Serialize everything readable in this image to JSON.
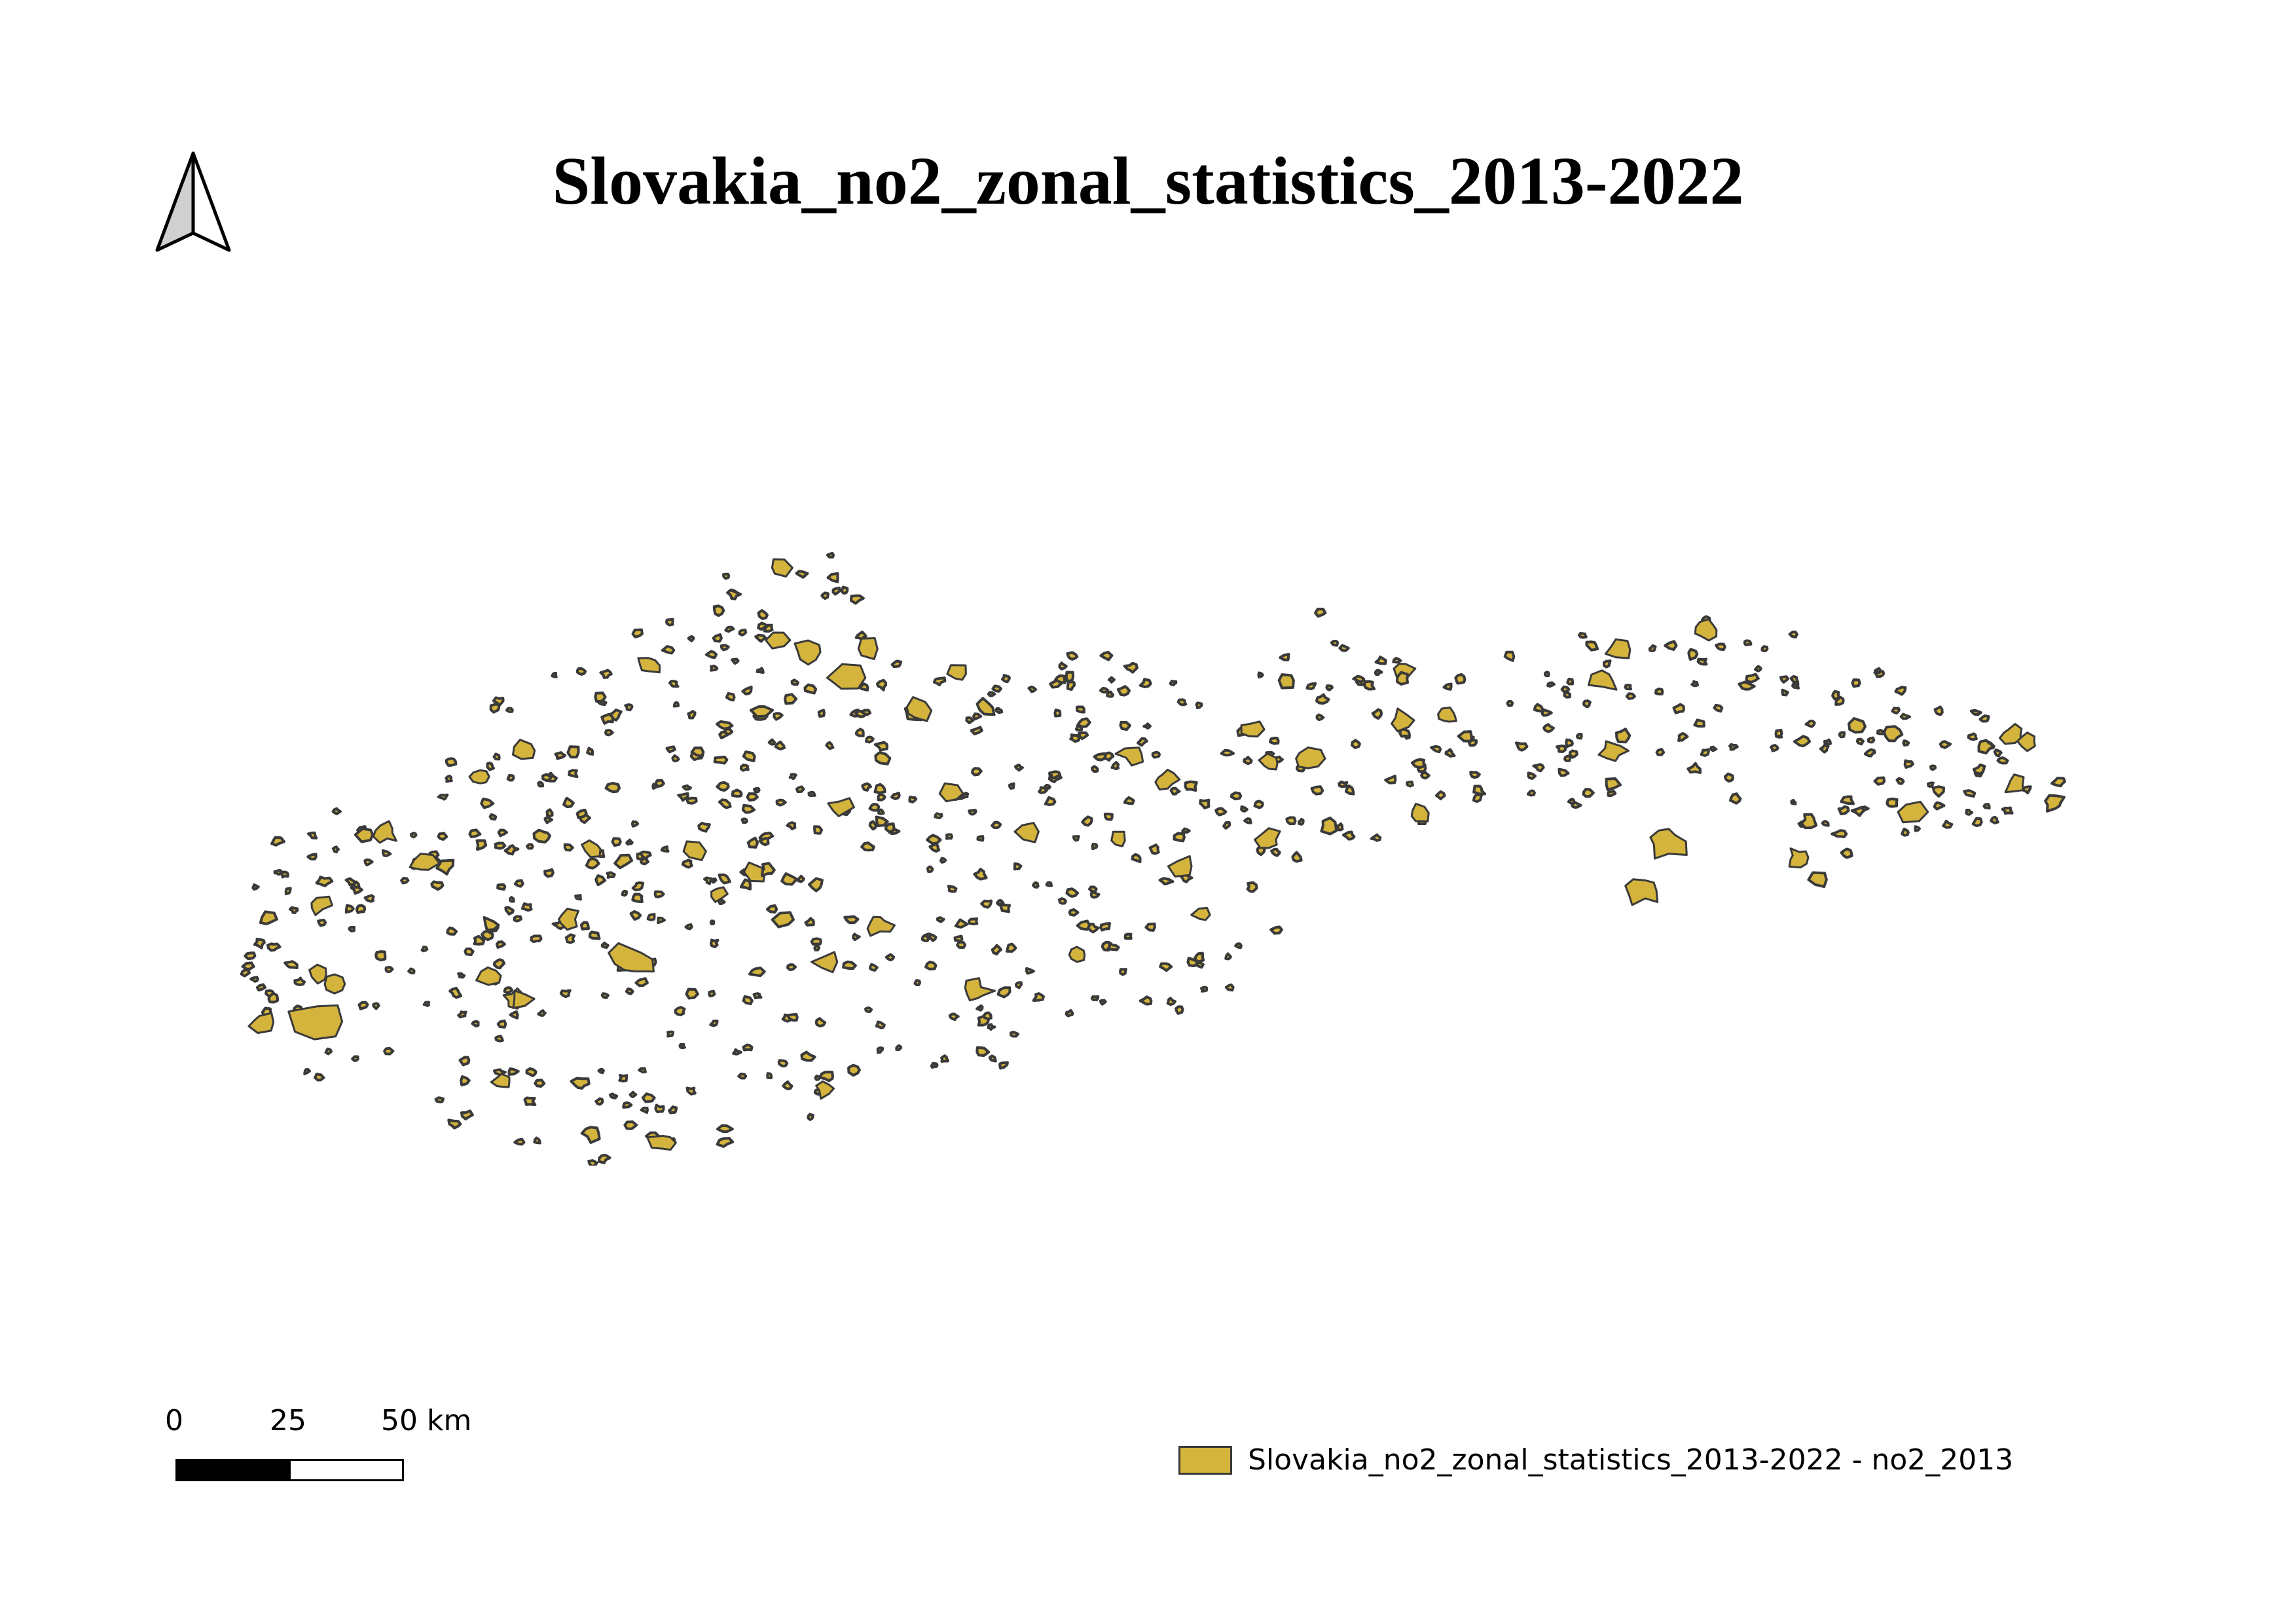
{
  "title": "Slovakia_no2_zonal_statistics_2013-2022",
  "north_arrow": {
    "icon": "north-arrow-icon"
  },
  "scale_bar": {
    "labels": [
      "0",
      "25",
      "50 km"
    ],
    "segment_colors": [
      "#000000",
      "#ffffff"
    ]
  },
  "legend": {
    "label": "Slovakia_no2_zonal_statistics_2013-2022 - no2_2013",
    "fill_color": "#d4b43c",
    "outline_color": "#3a3a3a"
  },
  "map": {
    "fill_color": "#d4b43c",
    "outline_color": "#3a3a3a"
  }
}
